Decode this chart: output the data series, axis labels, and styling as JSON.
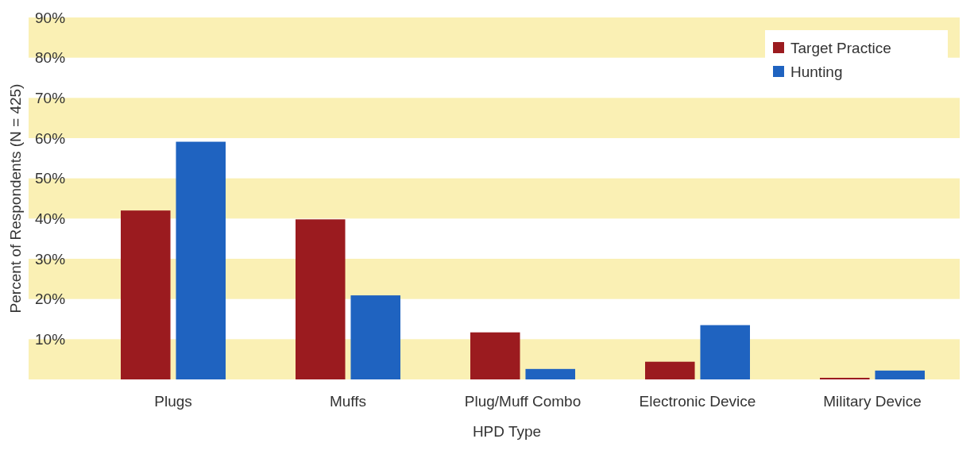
{
  "chart_data": {
    "type": "bar",
    "xlabel": "HPD Type",
    "ylabel": "Percent of Respondents (N = 425)",
    "categories": [
      "Plugs",
      "Muffs",
      "Plug/Muff Combo",
      "Electronic Device",
      "Military Device"
    ],
    "series": [
      {
        "name": "Target Practice",
        "color": "#9b1b1f",
        "values": [
          42,
          39.8,
          11.7,
          4.4,
          0.4
        ]
      },
      {
        "name": "Hunting",
        "color": "#1f63c0",
        "values": [
          59.1,
          20.9,
          2.6,
          13.5,
          2.2
        ]
      }
    ],
    "ylim": [
      0,
      90
    ],
    "yticks": [
      {
        "value": 10,
        "label": "10%"
      },
      {
        "value": 20,
        "label": "20%"
      },
      {
        "value": 30,
        "label": "30%"
      },
      {
        "value": 40,
        "label": "40%"
      },
      {
        "value": 50,
        "label": "50%"
      },
      {
        "value": 60,
        "label": "60%"
      },
      {
        "value": 70,
        "label": "70%"
      },
      {
        "value": 80,
        "label": "80%"
      },
      {
        "value": 90,
        "label": "90%"
      }
    ],
    "bands": [
      {
        "axis": "y",
        "from": 0,
        "to": 10,
        "color": "#faf0b4"
      },
      {
        "axis": "y",
        "from": 20,
        "to": 30,
        "color": "#faf0b4"
      },
      {
        "axis": "y",
        "from": 40,
        "to": 50,
        "color": "#faf0b4"
      },
      {
        "axis": "y",
        "from": 60,
        "to": 70,
        "color": "#faf0b4"
      },
      {
        "axis": "y",
        "from": 80,
        "to": 90,
        "color": "#faf0b4"
      }
    ],
    "legend": "top right"
  }
}
